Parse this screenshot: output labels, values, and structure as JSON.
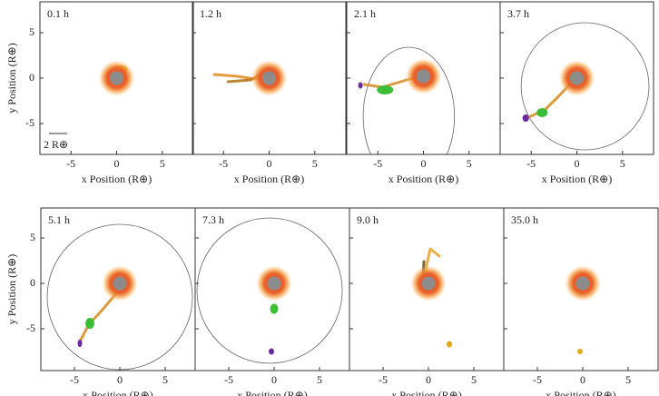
{
  "x_label": "x Position (R⊕)",
  "y_label": "y Position (R⊕)",
  "scale_bar": "2 R⊕",
  "rows": [
    {
      "xlim": [
        -8.4,
        8.4
      ],
      "ylim": [
        -8.4,
        8.4
      ],
      "xticks": [
        -5,
        0,
        5
      ],
      "yticks": [
        -5,
        0,
        5
      ],
      "panels": [
        {
          "label": "0.1 h"
        },
        {
          "label": "1.2 h"
        },
        {
          "label": "2.1 h"
        },
        {
          "label": "3.7 h"
        }
      ]
    },
    {
      "xlim": [
        -8.7,
        8.3
      ],
      "ylim": [
        -9.6,
        8.3
      ],
      "xticks": [
        -5,
        0,
        5
      ],
      "yticks": [
        -5,
        0,
        5
      ],
      "panels": [
        {
          "label": "5.1 h"
        },
        {
          "label": "7.3 h"
        },
        {
          "label": "9.0 h"
        },
        {
          "label": "35.0 h"
        }
      ]
    }
  ]
}
